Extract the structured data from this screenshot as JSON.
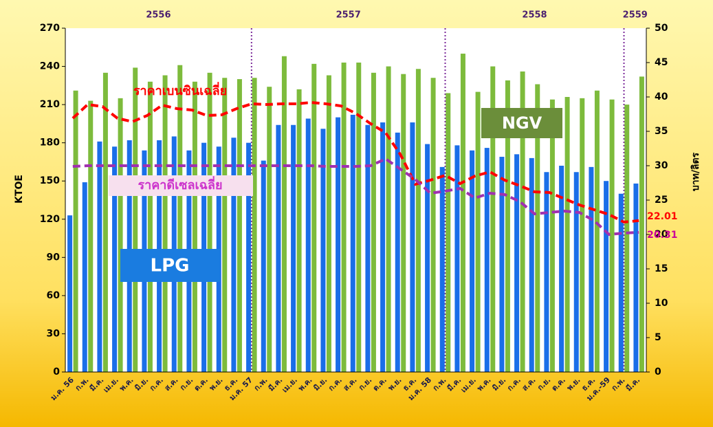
{
  "chart_data": {
    "type": "bar",
    "years": [
      "2556",
      "2557",
      "2558",
      "2559"
    ],
    "ylabel": "KTOE",
    "y2label": "บาท/ลิตร",
    "categories": [
      "ม.ค. 56",
      "ก.พ.",
      "มี.ค.",
      "เม.ย.",
      "พ.ค.",
      "มิ.ย.",
      "ก.ค.",
      "ส.ค.",
      "ก.ย.",
      "ต.ค.",
      "พ.ย.",
      "ธ.ค.",
      "ม.ค. 57",
      "ก.พ.",
      "มี.ค.",
      "เม.ย.",
      "พ.ค.",
      "มิ.ย.",
      "ก.ค.",
      "ส.ค.",
      "ก.ย.",
      "ต.ค.",
      "พ.ย.",
      "ธ.ค.",
      "ม.ค. 58",
      "ก.พ.",
      "มี.ค.",
      "เม.ย.",
      "พ.ค.",
      "มิ.ย.",
      "ก.ค.",
      "ส.ค.",
      "ก.ย.",
      "ต.ค.",
      "พ.ย.",
      "ธ.ค.",
      "ม.ค.-59",
      "ก.พ.",
      "มี.ค."
    ],
    "series": [
      {
        "name": "LPG",
        "type": "bar",
        "color": "#1a6ee8",
        "values": [
          123,
          149,
          181,
          177,
          182,
          174,
          182,
          185,
          174,
          180,
          177,
          184,
          180,
          166,
          194,
          194,
          199,
          191,
          200,
          202,
          194,
          196,
          188,
          196,
          179,
          161,
          178,
          174,
          176,
          169,
          171,
          168,
          157,
          162,
          157,
          161,
          150,
          140,
          148
        ]
      },
      {
        "name": "NGV",
        "type": "bar",
        "color": "#7dbb3c",
        "values": [
          221,
          213,
          235,
          215,
          239,
          228,
          233,
          241,
          228,
          235,
          231,
          230,
          231,
          224,
          248,
          222,
          242,
          233,
          243,
          243,
          235,
          240,
          234,
          238,
          231,
          219,
          250,
          220,
          240,
          229,
          236,
          226,
          214,
          216,
          215,
          221,
          214,
          210,
          232
        ]
      },
      {
        "name": "ราคาเบนซินเฉลี่ย",
        "type": "line",
        "axis": "y2",
        "color": "#ff0000",
        "values": [
          36.9,
          38.9,
          38.6,
          36.9,
          36.4,
          37.3,
          38.8,
          38.3,
          38.1,
          37.3,
          37.4,
          38.3,
          39.0,
          38.9,
          39.0,
          39.0,
          39.2,
          39.0,
          38.7,
          37.6,
          36.1,
          34.8,
          31.6,
          27.3,
          27.9,
          28.6,
          27.4,
          28.5,
          29.1,
          27.9,
          27.1,
          26.2,
          26.1,
          25.2,
          24.3,
          23.6,
          22.9,
          21.8,
          22.01
        ]
      },
      {
        "name": "ราคาดีเซลเฉลี่ย",
        "type": "line",
        "axis": "y2",
        "color": "#a030b0",
        "values": [
          29.9,
          30,
          30,
          30,
          30,
          30,
          30,
          30,
          30,
          30,
          30,
          30,
          30,
          30,
          30,
          30,
          30,
          29.9,
          29.9,
          29.9,
          30,
          31.0,
          29.5,
          28.0,
          26.0,
          26.3,
          26.7,
          25.3,
          26.0,
          25.8,
          24.8,
          23.0,
          23.2,
          23.4,
          23.2,
          22.0,
          20.0,
          20.2,
          20.31
        ]
      }
    ],
    "ylim": [
      0,
      270
    ],
    "yticks": [
      0,
      30,
      60,
      90,
      120,
      150,
      180,
      210,
      240,
      270
    ],
    "y2lim": [
      0,
      50
    ],
    "y2ticks": [
      0,
      5,
      10,
      15,
      20,
      25,
      30,
      35,
      40,
      45,
      50
    ]
  }
}
